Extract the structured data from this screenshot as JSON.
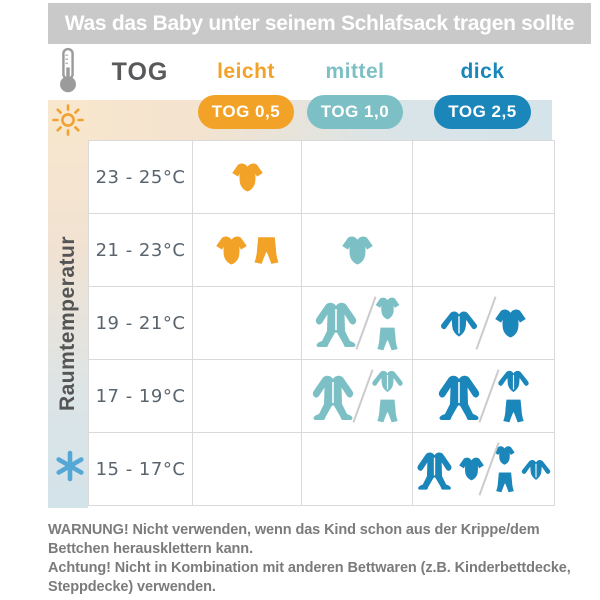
{
  "header": {
    "title": "Was das Baby unter seinem Schlafsack tragen sollte"
  },
  "table": {
    "tog_label": "TOG",
    "side_label": "Raumtemperatur",
    "columns": [
      {
        "id": "leicht",
        "label": "leicht",
        "badge": "TOG 0,5",
        "color": "#f2a227"
      },
      {
        "id": "mittel",
        "label": "mittel",
        "badge": "TOG 1,0",
        "color": "#7cc0c5"
      },
      {
        "id": "dick",
        "label": "dick",
        "badge": "TOG 2,5",
        "color": "#1b86ba"
      }
    ],
    "rows": [
      {
        "temp": "23 - 25°C",
        "cells": {
          "leicht": [
            [
              [
                "bodysuit"
              ]
            ]
          ],
          "mittel": [],
          "dick": []
        }
      },
      {
        "temp": "21 - 23°C",
        "cells": {
          "leicht": [
            [
              [
                "bodysuit"
              ],
              [
                "pants"
              ]
            ]
          ],
          "mittel": [
            [
              [
                "bodysuit"
              ]
            ]
          ],
          "dick": []
        }
      },
      {
        "temp": "19 - 21°C",
        "cells": {
          "leicht": [],
          "mittel": [
            [
              [
                "sleepsuit"
              ]
            ],
            [
              [
                "bodysuit",
                "pants"
              ]
            ]
          ],
          "dick": [
            [
              [
                "longsleeve"
              ]
            ],
            [
              [
                "bodysuit"
              ]
            ]
          ]
        }
      },
      {
        "temp": "17 - 19°C",
        "cells": {
          "leicht": [],
          "mittel": [
            [
              [
                "sleepsuit"
              ]
            ],
            [
              [
                "longsleeve",
                "pants"
              ]
            ]
          ],
          "dick": [
            [
              [
                "sleepsuit"
              ]
            ],
            [
              [
                "longsleeve",
                "pants"
              ]
            ]
          ]
        }
      },
      {
        "temp": "15 - 17°C",
        "cells": {
          "leicht": [],
          "mittel": [],
          "dick": [
            [
              [
                "sleepsuit"
              ],
              [
                "bodysuit"
              ]
            ],
            [
              [
                "bodysuit",
                "pants"
              ],
              [
                "longsleeve"
              ]
            ]
          ]
        }
      }
    ]
  },
  "icons": {
    "thermometer": "thermometer-icon",
    "sun": "sun-icon",
    "snowflake": "snowflake-icon",
    "bodysuit": "short-sleeve-bodysuit-icon",
    "pants": "pants-icon",
    "sleepsuit": "footed-sleepsuit-icon",
    "longsleeve": "long-sleeve-top-icon"
  },
  "colors": {
    "header_bg": "#c9c9c9",
    "band_warm": "#f9e7cd",
    "band_cool": "#d5e4ea",
    "grid_line": "#d9d9d9",
    "tog_text": "#58595b",
    "temp_text": "#5a646e",
    "side_label_text": "#555555",
    "footer_text": "#7b7b7b",
    "thermometer": "#9b9b9b",
    "sun": "#f0a22e",
    "snowflake": "#55a8d5"
  },
  "footer": {
    "lines": [
      "WARNUNG! Nicht verwenden, wenn das Kind schon aus der Krippe/dem",
      "Bettchen herausklettern kann.",
      "Achtung! Nicht in Kombination mit anderen Bettwaren (z.B. Kinderbettdecke,",
      "Steppdecke) verwenden."
    ]
  }
}
